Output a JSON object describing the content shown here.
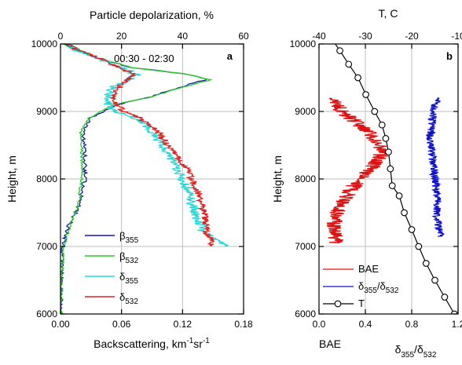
{
  "chart_data": [
    {
      "panel_label": "a",
      "type": "line",
      "annotation": "00:30 - 02:30",
      "xlabel": "Backscattering, km",
      "xlabel_sup1": "-1",
      "xlabel_mid": "sr",
      "xlabel_sup2": "-1",
      "xlim": [
        0,
        0.18
      ],
      "xticks": [
        "0.00",
        "0.06",
        "0.12",
        "0.18"
      ],
      "xtick_values": [
        0,
        0.06,
        0.12,
        0.18
      ],
      "x2label": "Particle depolarization, %",
      "x2lim": [
        0,
        60
      ],
      "x2ticks": [
        "0",
        "20",
        "40",
        "60"
      ],
      "x2tick_values": [
        0,
        20,
        40,
        60
      ],
      "ylabel": "Height, m",
      "ylim": [
        6000,
        10000
      ],
      "yticks": [
        "6000",
        "7000",
        "8000",
        "9000",
        "10000"
      ],
      "ytick_values": [
        6000,
        7000,
        8000,
        9000,
        10000
      ],
      "grid": true,
      "legend_position": "bottom-center",
      "series": [
        {
          "name": "β",
          "sub": "355",
          "axis": "bottom",
          "color": "#1515b0",
          "points": [
            [
              0,
              6000
            ],
            [
              0.001,
              6500
            ],
            [
              0.002,
              7000
            ],
            [
              0.008,
              7300
            ],
            [
              0.018,
              7600
            ],
            [
              0.024,
              8000
            ],
            [
              0.024,
              8400
            ],
            [
              0.022,
              8700
            ],
            [
              0.03,
              8900
            ],
            [
              0.055,
              9100
            ],
            [
              0.085,
              9200
            ],
            [
              0.115,
              9350
            ],
            [
              0.145,
              9480
            ],
            [
              0.12,
              9560
            ],
            [
              0.07,
              9650
            ],
            [
              0.035,
              9800
            ],
            [
              0.01,
              9950
            ],
            [
              0.003,
              10000
            ]
          ]
        },
        {
          "name": "β",
          "sub": "532",
          "axis": "bottom",
          "color": "#22cc22",
          "points": [
            [
              0,
              6000
            ],
            [
              0.001,
              6500
            ],
            [
              0.003,
              7000
            ],
            [
              0.009,
              7300
            ],
            [
              0.017,
              7600
            ],
            [
              0.021,
              8000
            ],
            [
              0.021,
              8400
            ],
            [
              0.02,
              8700
            ],
            [
              0.028,
              8900
            ],
            [
              0.053,
              9100
            ],
            [
              0.085,
              9200
            ],
            [
              0.118,
              9350
            ],
            [
              0.148,
              9470
            ],
            [
              0.12,
              9560
            ],
            [
              0.07,
              9650
            ],
            [
              0.035,
              9800
            ],
            [
              0.01,
              9950
            ],
            [
              0.003,
              10000
            ]
          ]
        },
        {
          "name": "δ",
          "sub": "355",
          "axis": "top",
          "color": "#22d8d8",
          "points": [
            [
              54,
              7000
            ],
            [
              47,
              7200
            ],
            [
              44,
              7500
            ],
            [
              42,
              7800
            ],
            [
              39,
              8100
            ],
            [
              35,
              8400
            ],
            [
              30,
              8700
            ],
            [
              25,
              8900
            ],
            [
              18,
              9000
            ],
            [
              15,
              9150
            ],
            [
              17,
              9350
            ],
            [
              21,
              9450
            ],
            [
              25,
              9550
            ],
            [
              20,
              9650
            ],
            [
              12,
              9800
            ],
            [
              6,
              9900
            ],
            [
              2,
              10000
            ]
          ]
        },
        {
          "name": "δ",
          "sub": "532",
          "axis": "top",
          "color": "#e02020",
          "points": [
            [
              50,
              7000
            ],
            [
              48,
              7200
            ],
            [
              47,
              7500
            ],
            [
              45,
              7800
            ],
            [
              42,
              8100
            ],
            [
              37,
              8400
            ],
            [
              32,
              8700
            ],
            [
              26,
              8900
            ],
            [
              21,
              9000
            ],
            [
              17,
              9150
            ],
            [
              19,
              9350
            ],
            [
              22,
              9450
            ],
            [
              24,
              9550
            ],
            [
              19,
              9650
            ],
            [
              12,
              9800
            ],
            [
              6,
              9900
            ],
            [
              2,
              10000
            ]
          ]
        }
      ]
    },
    {
      "panel_label": "b",
      "type": "line",
      "xlabel": "BAE",
      "xlim": [
        0,
        1.2
      ],
      "xticks": [
        "0.0",
        "0.4",
        "0.8",
        "1.2"
      ],
      "xtick_values": [
        0,
        0.4,
        0.8,
        1.2
      ],
      "x2label": "T, C",
      "x2lim": [
        -40,
        -10
      ],
      "x2ticks": [
        "-40",
        "-30",
        "-20",
        "-10"
      ],
      "x2tick_values": [
        -40,
        -30,
        -20,
        -10
      ],
      "ylabel": "Height, m",
      "ylim": [
        6000,
        10000
      ],
      "yticks": [
        "6000",
        "7000",
        "8000",
        "9000",
        "10000"
      ],
      "ytick_values": [
        6000,
        7000,
        8000,
        9000,
        10000
      ],
      "grid": true,
      "legend_position": "bottom-left",
      "ratio_label": {
        "a": "δ",
        "a_sub": "355",
        "b": "δ",
        "b_sub": "532"
      },
      "series": [
        {
          "name": "BAE",
          "axis": "bottom",
          "color": "#e01010",
          "points": [
            [
              0.15,
              7050
            ],
            [
              0.12,
              7300
            ],
            [
              0.18,
              7600
            ],
            [
              0.3,
              7900
            ],
            [
              0.45,
              8150
            ],
            [
              0.55,
              8400
            ],
            [
              0.48,
              8600
            ],
            [
              0.35,
              8800
            ],
            [
              0.2,
              9000
            ],
            [
              0.1,
              9200
            ]
          ]
        },
        {
          "name": "δ355/δ532",
          "axis": "bottom",
          "color": "#1010d0",
          "points": [
            [
              1.05,
              7150
            ],
            [
              1.02,
              7400
            ],
            [
              1.02,
              7700
            ],
            [
              1.0,
              8000
            ],
            [
              0.98,
              8300
            ],
            [
              0.96,
              8600
            ],
            [
              0.98,
              8900
            ],
            [
              1.0,
              9100
            ],
            [
              1.02,
              9200
            ]
          ]
        },
        {
          "name": "T",
          "axis": "top",
          "color": "#000000",
          "marker": "open-circle",
          "points": [
            [
              -10.8,
              6000
            ],
            [
              -12.9,
              6250
            ],
            [
              -15.0,
              6500
            ],
            [
              -16.9,
              6750
            ],
            [
              -18.5,
              7000
            ],
            [
              -20.0,
              7250
            ],
            [
              -21.6,
              7500
            ],
            [
              -22.7,
              7750
            ],
            [
              -24.2,
              7900
            ],
            [
              -24.6,
              8150
            ],
            [
              -25.0,
              8400
            ],
            [
              -25.6,
              8600
            ],
            [
              -26.4,
              8800
            ],
            [
              -28.0,
              9000
            ],
            [
              -29.9,
              9250
            ],
            [
              -31.6,
              9500
            ],
            [
              -33.6,
              9700
            ],
            [
              -35.5,
              9900
            ],
            [
              -37.5,
              10100
            ]
          ]
        }
      ]
    }
  ]
}
